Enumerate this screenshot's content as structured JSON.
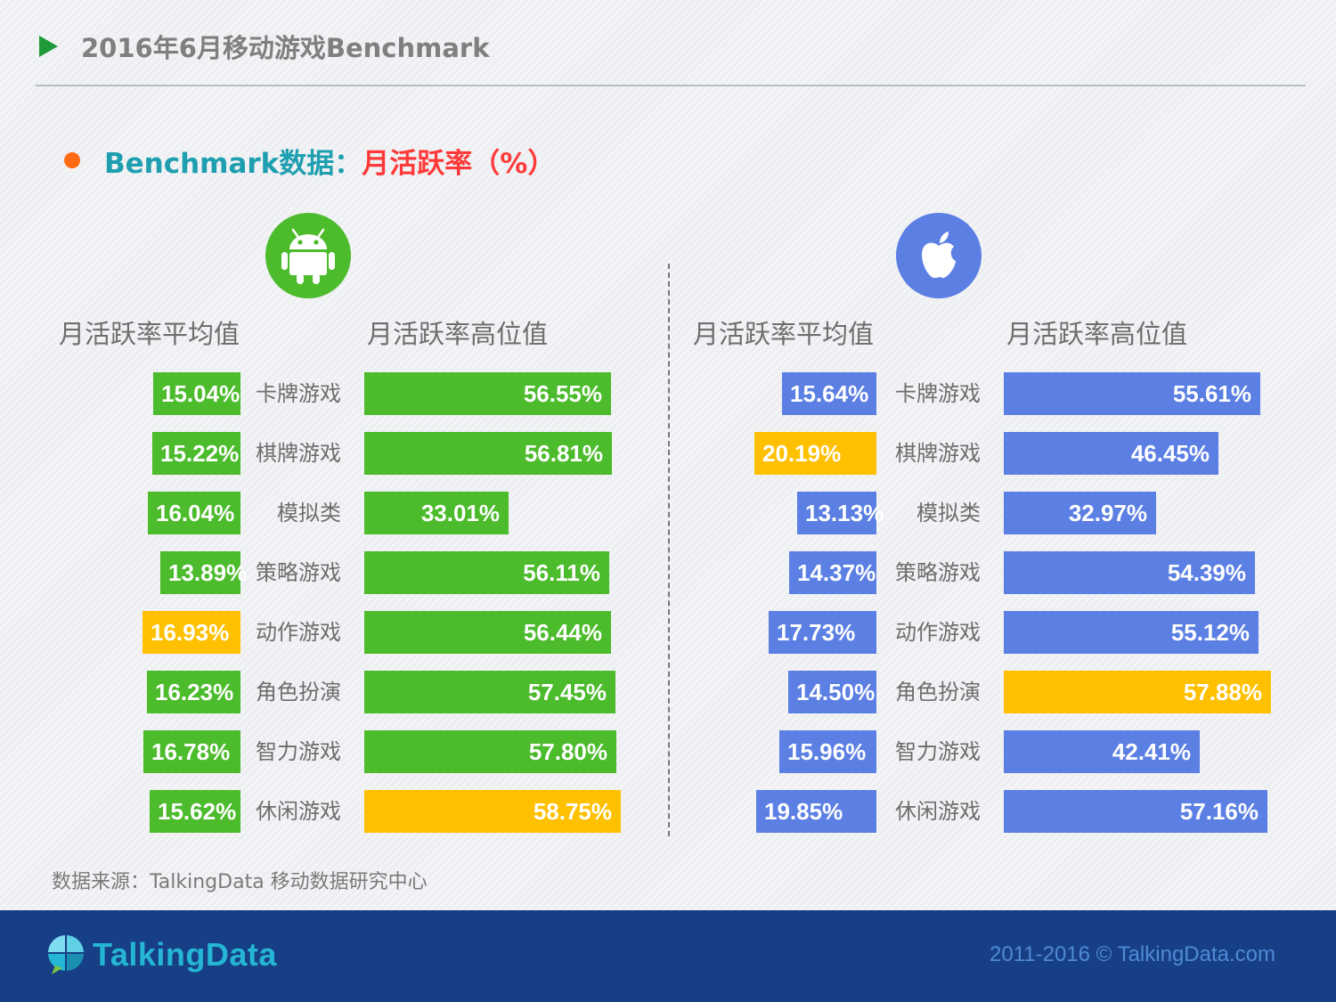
{
  "header": {
    "title": "2016年6月移动游戏Benchmark",
    "subtitle_label": "Benchmark数据：",
    "subtitle_metric": "月活跃率（%）"
  },
  "colors": {
    "android": "#4cbb2c",
    "ios": "#5b7fe3",
    "highlight": "#ffc000",
    "title_green": "#1f9a3a",
    "teal": "#1e9fb0",
    "red": "#ff3a3a",
    "footer": "#173f86"
  },
  "panels": {
    "android": {
      "icon": "android-robot-icon",
      "avg_header": "月活跃率平均值",
      "high_header": "月活跃率高位值"
    },
    "ios": {
      "icon": "apple-icon",
      "avg_header": "月活跃率平均值",
      "high_header": "月活跃率高位值"
    }
  },
  "chart_data": [
    {
      "type": "bar",
      "platform": "Android",
      "categories": [
        "卡牌游戏",
        "棋牌游戏",
        "模拟类",
        "策略游戏",
        "动作游戏",
        "角色扮演",
        "智力游戏",
        "休闲游戏"
      ],
      "series": [
        {
          "name": "月活跃率平均值",
          "values": [
            15.04,
            15.22,
            16.04,
            13.89,
            16.93,
            16.23,
            16.78,
            15.62
          ],
          "labels": [
            "15.04%",
            "15.22%",
            "16.04%",
            "13.89%",
            "16.93%",
            "16.23%",
            "16.78%",
            "15.62%"
          ],
          "highlight_index": 4
        },
        {
          "name": "月活跃率高位值",
          "values": [
            56.55,
            56.81,
            33.01,
            56.11,
            56.44,
            57.45,
            57.8,
            58.75
          ],
          "labels": [
            "56.55%",
            "56.81%",
            "33.01%",
            "56.11%",
            "56.44%",
            "57.45%",
            "57.80%",
            "58.75%"
          ],
          "highlight_index": 7
        }
      ]
    },
    {
      "type": "bar",
      "platform": "iOS",
      "categories": [
        "卡牌游戏",
        "棋牌游戏",
        "模拟类",
        "策略游戏",
        "动作游戏",
        "角色扮演",
        "智力游戏",
        "休闲游戏"
      ],
      "series": [
        {
          "name": "月活跃率平均值",
          "values": [
            15.64,
            20.19,
            13.13,
            14.37,
            17.73,
            14.5,
            15.96,
            19.85
          ],
          "labels": [
            "15.64%",
            "20.19%",
            "13.13%",
            "14.37%",
            "17.73%",
            "14.50%",
            "15.96%",
            "19.85%"
          ],
          "highlight_index": 1
        },
        {
          "name": "月活跃率高位值",
          "values": [
            55.61,
            46.45,
            32.97,
            54.39,
            55.12,
            57.88,
            42.41,
            57.16
          ],
          "labels": [
            "55.61%",
            "46.45%",
            "32.97%",
            "54.39%",
            "55.12%",
            "57.88%",
            "42.41%",
            "57.16%"
          ],
          "highlight_index": 5
        }
      ]
    }
  ],
  "source": "数据来源：TalkingData 移动数据研究中心",
  "footer": {
    "brand": "TalkingData",
    "copyright": "2011-2016 © TalkingData.com"
  }
}
